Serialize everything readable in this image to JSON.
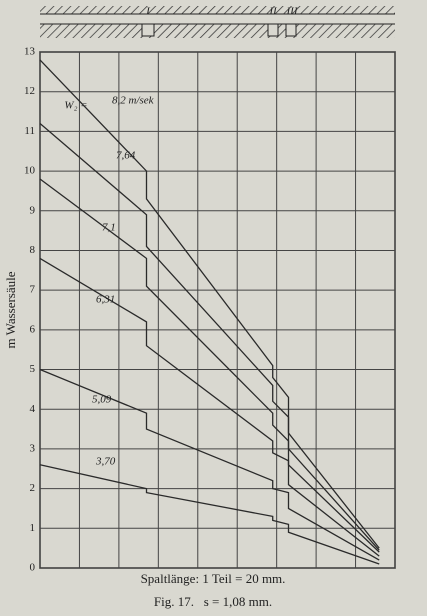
{
  "chart_data": {
    "type": "line",
    "ylabel": "m Wassersäule",
    "x": [
      0,
      2.7,
      2.7,
      5.9,
      5.9,
      6.3,
      6.3,
      8.6
    ],
    "series": [
      {
        "name": "8,2 m/sek",
        "color": "#2a2a2a",
        "values": [
          12.8,
          10.0,
          9.3,
          5.1,
          4.8,
          4.3,
          3.4,
          0.5
        ]
      },
      {
        "name": "7,64",
        "color": "#2a2a2a",
        "values": [
          11.2,
          8.9,
          8.1,
          4.6,
          4.2,
          3.8,
          3.0,
          0.45
        ]
      },
      {
        "name": "7,1",
        "color": "#2a2a2a",
        "values": [
          9.8,
          7.8,
          7.1,
          3.9,
          3.6,
          3.2,
          2.6,
          0.4
        ]
      },
      {
        "name": "6,31",
        "color": "#2a2a2a",
        "values": [
          7.8,
          6.2,
          5.6,
          3.2,
          2.9,
          2.7,
          2.1,
          0.3
        ]
      },
      {
        "name": "5,09",
        "color": "#2a2a2a",
        "values": [
          5.0,
          3.9,
          3.5,
          2.2,
          2.0,
          1.9,
          1.5,
          0.2
        ]
      },
      {
        "name": "3,70",
        "color": "#2a2a2a",
        "values": [
          2.6,
          2.0,
          1.9,
          1.3,
          1.2,
          1.1,
          0.9,
          0.1
        ]
      }
    ],
    "annotations": [
      "W₂ =",
      "I",
      "II",
      "III"
    ],
    "caption": "Spaltlänge: 1 Teil = 20 mm.",
    "figure": "Fig. 17.   s = 1,08 mm.",
    "xlim": [
      0,
      9
    ],
    "xticks": [
      0,
      1,
      2,
      3,
      4,
      5,
      6,
      7,
      8,
      9
    ],
    "ylim": [
      0,
      13
    ],
    "yticks": [
      0,
      1,
      2,
      3,
      4,
      5,
      6,
      7,
      8,
      9,
      10,
      11,
      12,
      13
    ],
    "grid": true
  }
}
